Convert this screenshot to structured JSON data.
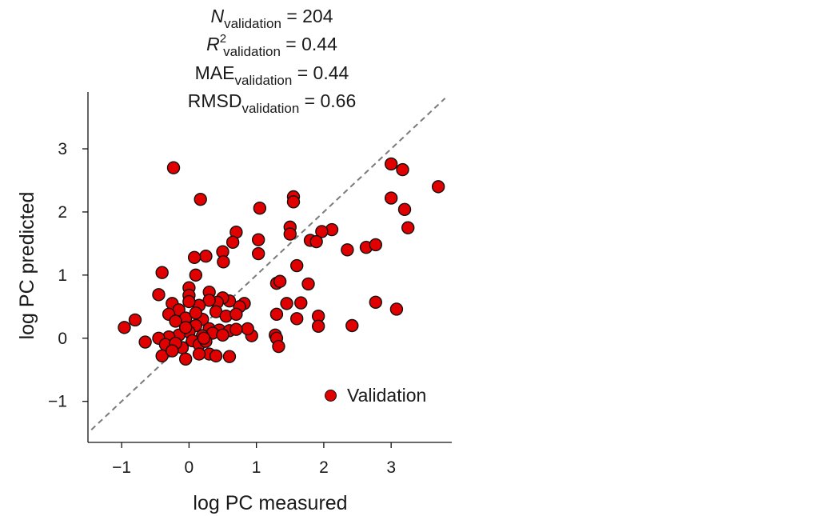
{
  "chart_data": {
    "type": "scatter",
    "xlabel": "log PC measured",
    "ylabel": "log PC predicted",
    "xlim": [
      -1.5,
      3.9
    ],
    "ylim": [
      -1.65,
      3.9
    ],
    "xticks": [
      -1,
      0,
      1,
      2,
      3
    ],
    "xtick_labels": [
      "−1",
      "0",
      "1",
      "2",
      "3"
    ],
    "yticks": [
      -1,
      0,
      1,
      2,
      3
    ],
    "ytick_labels": [
      "−1",
      "0",
      "1",
      "2",
      "3"
    ],
    "reference_line": {
      "style": "dashed",
      "x": [
        -1.45,
        3.8
      ],
      "y": [
        -1.45,
        3.8
      ]
    },
    "stats": {
      "n_symbol": "N",
      "r_symbol": "R",
      "r_power": "2",
      "mae_symbol": "MAE",
      "rmsd_symbol": "RMSD",
      "subscript": "validation",
      "n_value": "= 204",
      "r2_value": "= 0.44",
      "mae_value": "= 0.44",
      "rmsd_value": "= 0.66"
    },
    "legend": {
      "label": "Validation",
      "color": "#e00000",
      "position": "bottom-right"
    },
    "series": [
      {
        "name": "Validation",
        "color": "#e00000",
        "points": [
          [
            -0.23,
            2.7
          ],
          [
            0.17,
            2.2
          ],
          [
            1.55,
            2.24
          ],
          [
            1.55,
            2.16
          ],
          [
            1.05,
            2.06
          ],
          [
            3.0,
            2.76
          ],
          [
            3.17,
            2.67
          ],
          [
            3.7,
            2.4
          ],
          [
            3.0,
            2.22
          ],
          [
            3.2,
            2.04
          ],
          [
            3.25,
            1.75
          ],
          [
            1.5,
            1.76
          ],
          [
            1.5,
            1.65
          ],
          [
            2.12,
            1.72
          ],
          [
            1.97,
            1.69
          ],
          [
            1.8,
            1.55
          ],
          [
            1.89,
            1.53
          ],
          [
            2.35,
            1.4
          ],
          [
            2.63,
            1.44
          ],
          [
            2.77,
            1.48
          ],
          [
            0.7,
            1.68
          ],
          [
            0.65,
            1.52
          ],
          [
            1.03,
            1.56
          ],
          [
            1.03,
            1.34
          ],
          [
            0.5,
            1.37
          ],
          [
            0.51,
            1.21
          ],
          [
            0.25,
            1.3
          ],
          [
            0.08,
            1.28
          ],
          [
            -0.4,
            1.04
          ],
          [
            0.1,
            1.0
          ],
          [
            1.3,
            0.87
          ],
          [
            1.35,
            0.9
          ],
          [
            1.6,
            1.15
          ],
          [
            1.77,
            0.86
          ],
          [
            0.3,
            0.73
          ],
          [
            0.0,
            0.8
          ],
          [
            -0.45,
            0.69
          ],
          [
            2.77,
            0.57
          ],
          [
            3.08,
            0.46
          ],
          [
            1.45,
            0.55
          ],
          [
            1.66,
            0.56
          ],
          [
            1.3,
            0.38
          ],
          [
            1.6,
            0.31
          ],
          [
            1.92,
            0.35
          ],
          [
            1.92,
            0.19
          ],
          [
            2.42,
            0.2
          ],
          [
            1.28,
            0.05
          ],
          [
            1.3,
            0.0
          ],
          [
            1.33,
            -0.13
          ],
          [
            0.93,
            0.04
          ],
          [
            0.87,
            0.15
          ],
          [
            -0.96,
            0.17
          ],
          [
            -0.8,
            0.29
          ],
          [
            -0.65,
            -0.06
          ],
          [
            0.6,
            -0.29
          ],
          [
            0.82,
            0.55
          ],
          [
            0.75,
            0.5
          ],
          [
            0.6,
            0.59
          ],
          [
            0.5,
            0.64
          ],
          [
            0.42,
            0.57
          ],
          [
            0.3,
            0.6
          ],
          [
            0.15,
            0.52
          ],
          [
            0.0,
            0.68
          ],
          [
            0.0,
            0.58
          ],
          [
            -0.25,
            0.55
          ],
          [
            -0.15,
            0.45
          ],
          [
            -0.3,
            0.38
          ],
          [
            0.4,
            0.42
          ],
          [
            0.55,
            0.35
          ],
          [
            0.7,
            0.38
          ],
          [
            0.2,
            0.3
          ],
          [
            0.1,
            0.2
          ],
          [
            -0.05,
            0.32
          ],
          [
            -0.2,
            0.27
          ],
          [
            0.3,
            0.15
          ],
          [
            0.45,
            0.13
          ],
          [
            0.6,
            0.12
          ],
          [
            0.7,
            0.14
          ],
          [
            0.35,
            0.08
          ],
          [
            0.2,
            0.04
          ],
          [
            0.0,
            0.1
          ],
          [
            -0.15,
            0.05
          ],
          [
            -0.3,
            0.02
          ],
          [
            -0.45,
            0.0
          ],
          [
            0.05,
            -0.04
          ],
          [
            0.15,
            -0.1
          ],
          [
            -0.1,
            -0.15
          ],
          [
            -0.35,
            -0.1
          ],
          [
            -0.4,
            -0.28
          ],
          [
            -0.05,
            -0.33
          ],
          [
            0.3,
            -0.25
          ],
          [
            0.4,
            -0.28
          ],
          [
            0.25,
            -0.05
          ],
          [
            0.5,
            0.05
          ],
          [
            -0.2,
            -0.08
          ],
          [
            0.1,
            0.4
          ],
          [
            -0.05,
            0.17
          ],
          [
            0.22,
            0.0
          ],
          [
            -0.25,
            -0.2
          ],
          [
            0.15,
            -0.25
          ]
        ]
      }
    ]
  }
}
